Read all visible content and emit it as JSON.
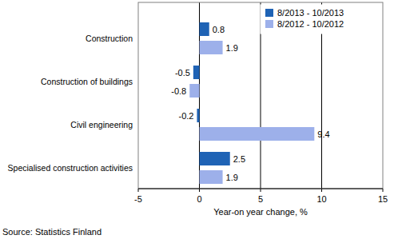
{
  "chart_data": {
    "type": "bar",
    "orientation": "horizontal",
    "categories": [
      "Construction",
      "Construction of buildings",
      "Civil engineering",
      "Specialised construction activities"
    ],
    "series": [
      {
        "name": "8/2013 - 10/2013",
        "color": "#1f63b5",
        "values": [
          0.8,
          -0.5,
          -0.2,
          2.5
        ]
      },
      {
        "name": "8/2012 - 10/2012",
        "color": "#9db0ea",
        "values": [
          1.9,
          -0.8,
          9.4,
          1.9
        ]
      }
    ],
    "xlim": [
      -5,
      15
    ],
    "xticks": [
      -5,
      0,
      5,
      10,
      15
    ],
    "x_label": "Year-on year change, %",
    "source": "Source: Statistics Finland",
    "grid": true,
    "legend": "upper right",
    "data_labels": true
  }
}
